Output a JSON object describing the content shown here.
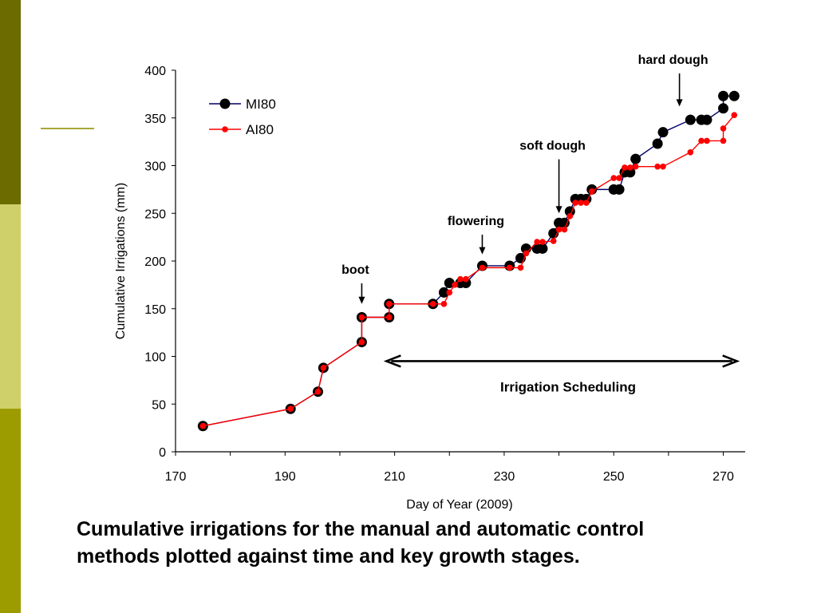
{
  "theme": {
    "bar_dark": "#6b6b00",
    "bar_light": "#cfd06a",
    "bar_mid": "#9c9c00",
    "accent_line": "#a8a838"
  },
  "caption": {
    "line1": "Cumulative irrigations for the manual and automatic control",
    "line2": "methods plotted against time and key growth stages."
  },
  "chart_data": {
    "type": "line",
    "title": "",
    "xlabel": "Day of Year (2009)",
    "ylabel": "Cumulative Irrigations (mm)",
    "xlim": [
      170,
      274
    ],
    "ylim": [
      0,
      400
    ],
    "xticks": [
      170,
      190,
      210,
      230,
      250,
      270
    ],
    "yticks": [
      0,
      50,
      100,
      150,
      200,
      250,
      300,
      350,
      400
    ],
    "grid": false,
    "legend_position": "top-left",
    "series": [
      {
        "name": "MI80",
        "line_color": "#000066",
        "marker_color": "#000000",
        "step": true,
        "points": [
          [
            175,
            27
          ],
          [
            191,
            45
          ],
          [
            196,
            63
          ],
          [
            197,
            88
          ],
          [
            204,
            115
          ],
          [
            204,
            141
          ],
          [
            209,
            141
          ],
          [
            209,
            155
          ],
          [
            217,
            155
          ],
          [
            219,
            167
          ],
          [
            220,
            177
          ],
          [
            222,
            177
          ],
          [
            223,
            177
          ],
          [
            226,
            195
          ],
          [
            231,
            195
          ],
          [
            233,
            203
          ],
          [
            234,
            213
          ],
          [
            236,
            213
          ],
          [
            237,
            213
          ],
          [
            239,
            229
          ],
          [
            240,
            240
          ],
          [
            241,
            240
          ],
          [
            242,
            252
          ],
          [
            243,
            265
          ],
          [
            244,
            265
          ],
          [
            245,
            265
          ],
          [
            246,
            275
          ],
          [
            250,
            275
          ],
          [
            251,
            275
          ],
          [
            252,
            293
          ],
          [
            253,
            293
          ],
          [
            254,
            307
          ],
          [
            258,
            323
          ],
          [
            259,
            335
          ],
          [
            264,
            348
          ],
          [
            266,
            348
          ],
          [
            267,
            348
          ],
          [
            270,
            360
          ],
          [
            270,
            373
          ],
          [
            272,
            373
          ]
        ]
      },
      {
        "name": "AI80",
        "line_color": "#ff0000",
        "marker_color": "#ff0000",
        "step": true,
        "points": [
          [
            175,
            27
          ],
          [
            191,
            45
          ],
          [
            196,
            63
          ],
          [
            197,
            88
          ],
          [
            204,
            115
          ],
          [
            204,
            141
          ],
          [
            209,
            141
          ],
          [
            209,
            155
          ],
          [
            217,
            155
          ],
          [
            219,
            155
          ],
          [
            220,
            167
          ],
          [
            221,
            175
          ],
          [
            222,
            181
          ],
          [
            223,
            181
          ],
          [
            226,
            193
          ],
          [
            231,
            193
          ],
          [
            233,
            193
          ],
          [
            234,
            208
          ],
          [
            236,
            220
          ],
          [
            237,
            220
          ],
          [
            239,
            221
          ],
          [
            240,
            233
          ],
          [
            241,
            233
          ],
          [
            242,
            247
          ],
          [
            243,
            261
          ],
          [
            244,
            261
          ],
          [
            245,
            261
          ],
          [
            246,
            273
          ],
          [
            250,
            287
          ],
          [
            251,
            287
          ],
          [
            252,
            298
          ],
          [
            253,
            298
          ],
          [
            254,
            299
          ],
          [
            258,
            299
          ],
          [
            259,
            299
          ],
          [
            264,
            314
          ],
          [
            266,
            326
          ],
          [
            267,
            326
          ],
          [
            270,
            326
          ],
          [
            270,
            339
          ],
          [
            272,
            353
          ]
        ]
      }
    ],
    "annotations": [
      {
        "label": "boot",
        "x": 204,
        "y_tip": 155,
        "y_top": 185
      },
      {
        "label": "flowering",
        "x": 226,
        "y_tip": 207,
        "y_top": 236
      },
      {
        "label": "soft dough",
        "x": 240,
        "y_tip": 250,
        "y_top": 315
      },
      {
        "label": "hard dough",
        "x": 262,
        "y_tip": 362,
        "y_top": 405
      }
    ],
    "span_annotation": {
      "label": "Irrigation Scheduling",
      "x_start": 208.5,
      "x_end": 272.5,
      "y": 95
    }
  }
}
